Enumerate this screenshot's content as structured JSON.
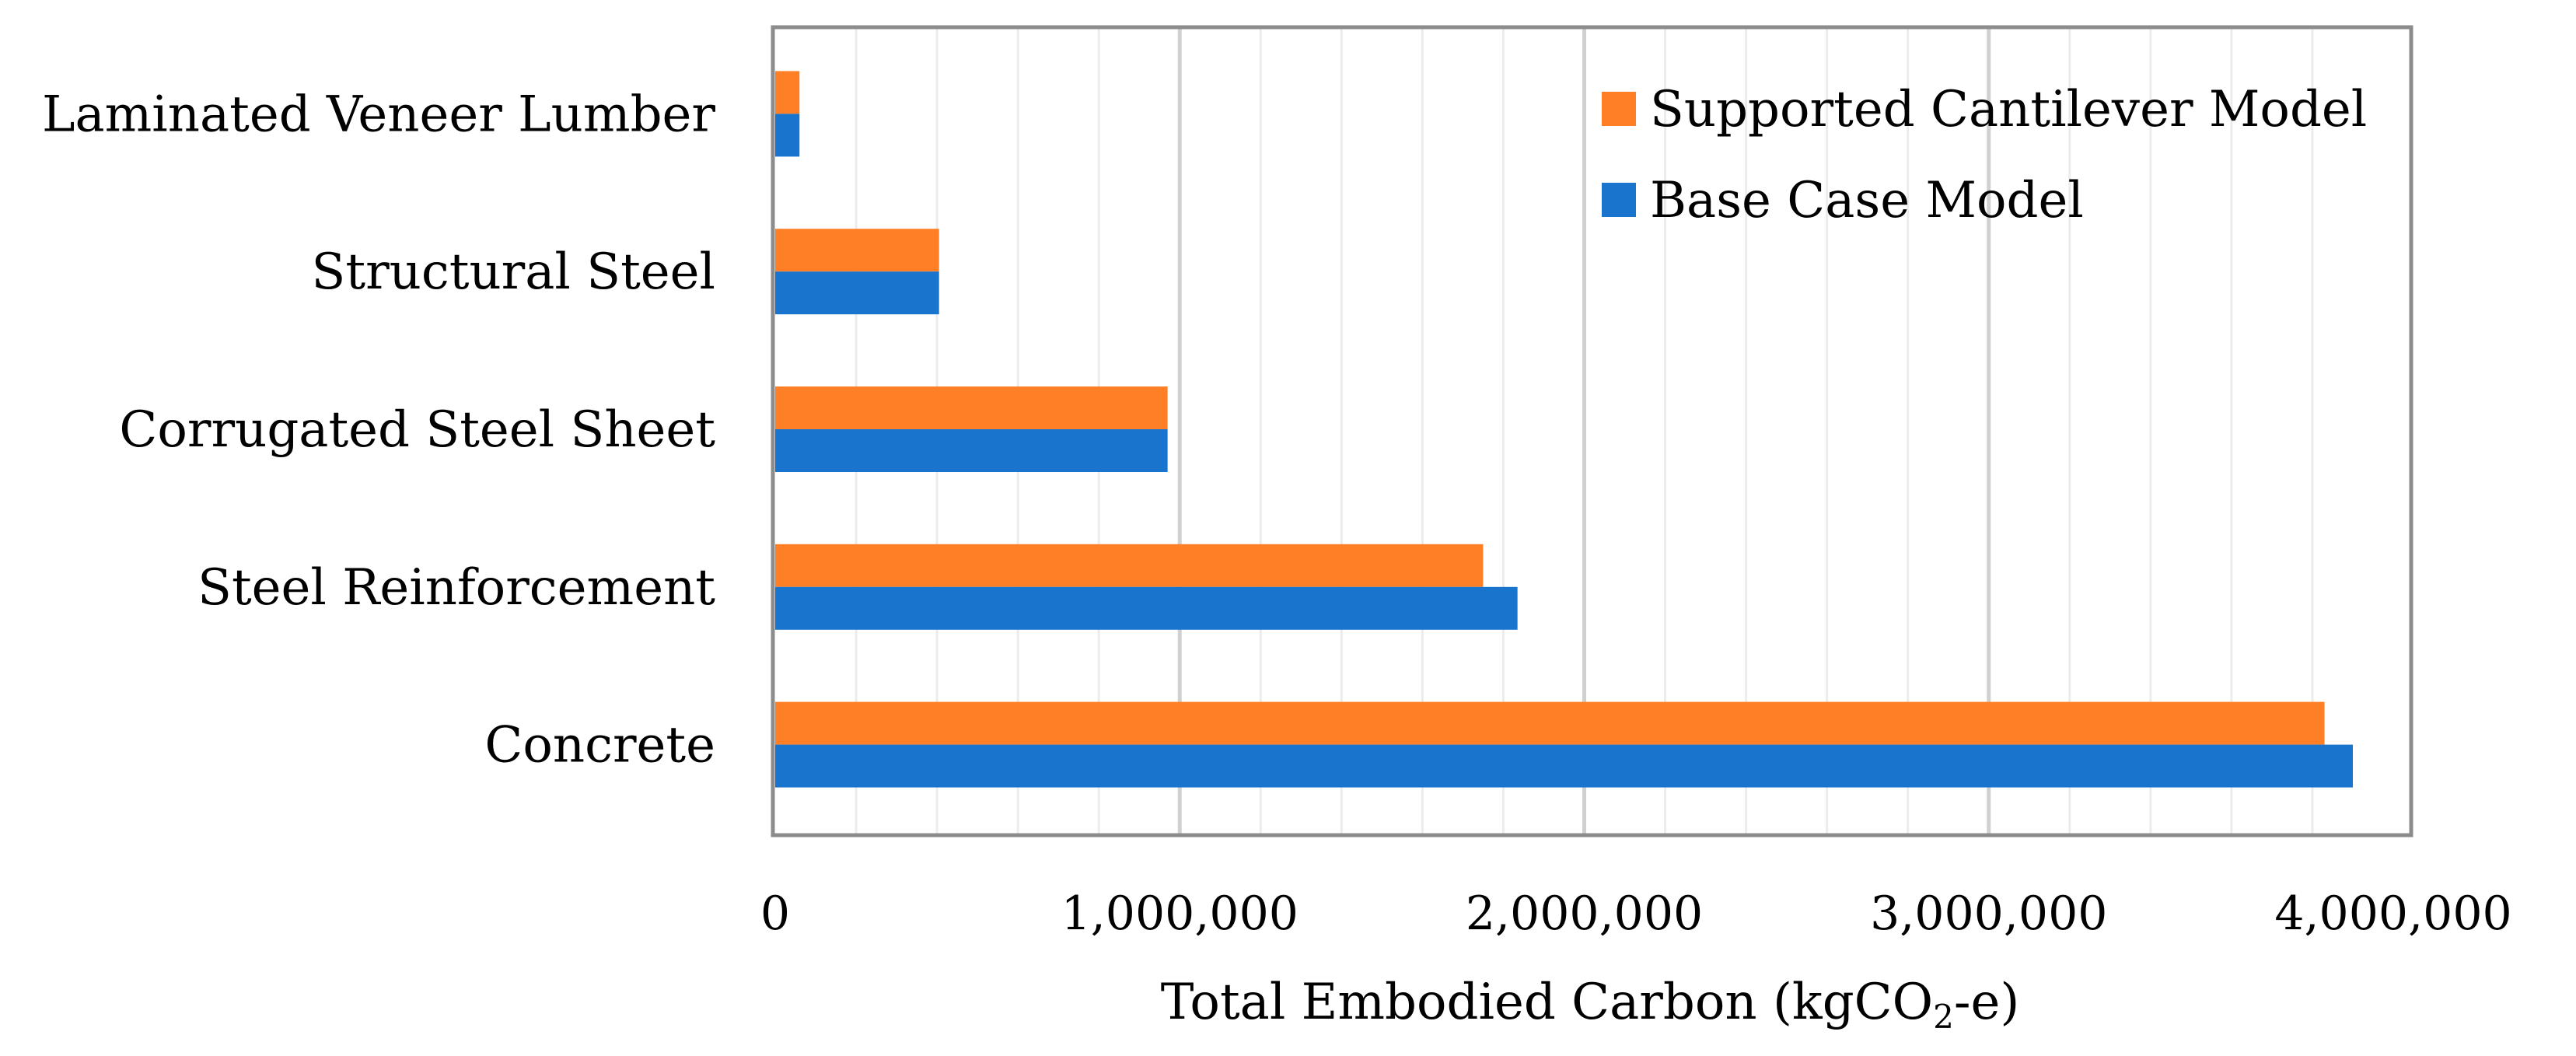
{
  "chart_data": {
    "type": "bar",
    "orientation": "horizontal",
    "categories": [
      "Laminated Veneer Lumber",
      "Structural Steel",
      "Corrugated Steel Sheet",
      "Steel Reinforcement",
      "Concrete"
    ],
    "series": [
      {
        "name": "Supported Cantilever Model",
        "color": "#FF7F27",
        "values": [
          60000,
          405000,
          970000,
          1750000,
          3830000
        ]
      },
      {
        "name": "Base Case Model",
        "color": "#1874CD",
        "values": [
          60000,
          405000,
          970000,
          1835000,
          3900000
        ]
      }
    ],
    "xlabel_prefix": "Total Embodied Carbon (kgCO",
    "xlabel_sub": "2",
    "xlabel_suffix": "-e)",
    "xlim": [
      0,
      4000000
    ],
    "major_ticks": [
      0,
      1000000,
      2000000,
      3000000,
      4000000
    ],
    "tick_labels": [
      "0",
      "1,000,000",
      "2,000,000",
      "3,000,000",
      "4,000,000"
    ],
    "minor_tick_step": 200000,
    "grid": true,
    "legend_position": "top-right"
  }
}
